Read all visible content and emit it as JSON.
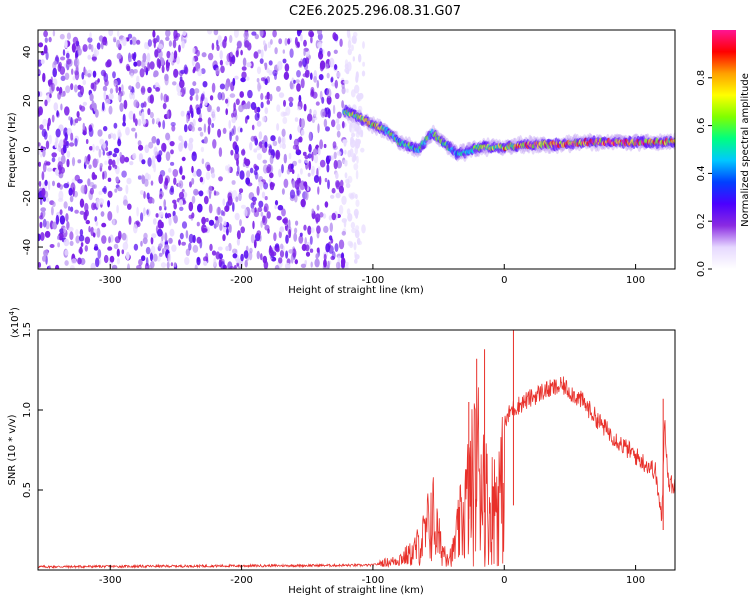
{
  "title": "C2E6.2025.296.08.31.G07",
  "chart_data": [
    {
      "type": "heatmap",
      "name": "spectrogram",
      "xlabel": "Height of straight line (km)",
      "ylabel": "Frequency (Hz)",
      "xlim": [
        -355,
        130
      ],
      "ylim": [
        -49,
        49
      ],
      "xticks": [
        -300,
        -200,
        -100,
        0,
        100
      ],
      "yticks": [
        -40,
        -20,
        0,
        20,
        40
      ],
      "colorbar": {
        "label": "Normalized spectral amplitude",
        "range": [
          0.0,
          1.0
        ],
        "ticks": [
          0.0,
          0.2,
          0.4,
          0.6,
          0.8
        ],
        "tick_labels": [
          "0.0",
          "0.2",
          "0.4",
          "0.6",
          "0.8"
        ],
        "colors": [
          "#ffffff",
          "#e6d8ff",
          "#8a2be2",
          "#4b00ff",
          "#0040ff",
          "#00c8ff",
          "#00ff80",
          "#80ff00",
          "#ffff00",
          "#ffa000",
          "#ff0000",
          "#ff1493"
        ]
      },
      "noise_region_km": [
        -355,
        -122
      ],
      "noise_amplitude": 0.25,
      "signal_ridge": [
        {
          "x": -122,
          "freq": 16,
          "amp": 0.55
        },
        {
          "x": -110,
          "freq": 13,
          "amp": 0.65
        },
        {
          "x": -100,
          "freq": 10,
          "amp": 0.75
        },
        {
          "x": -90,
          "freq": 8,
          "amp": 0.6
        },
        {
          "x": -80,
          "freq": 3,
          "amp": 0.55
        },
        {
          "x": -65,
          "freq": 0,
          "amp": 0.5
        },
        {
          "x": -55,
          "freq": 7,
          "amp": 0.6
        },
        {
          "x": -45,
          "freq": 2,
          "amp": 0.55
        },
        {
          "x": -35,
          "freq": -2,
          "amp": 0.45
        },
        {
          "x": -25,
          "freq": 0,
          "amp": 0.55
        },
        {
          "x": -15,
          "freq": 1,
          "amp": 0.65
        },
        {
          "x": 0,
          "freq": 1,
          "amp": 0.75
        },
        {
          "x": 20,
          "freq": 2,
          "amp": 0.85
        },
        {
          "x": 40,
          "freq": 2,
          "amp": 0.85
        },
        {
          "x": 60,
          "freq": 3,
          "amp": 0.85
        },
        {
          "x": 80,
          "freq": 3,
          "amp": 0.9
        },
        {
          "x": 100,
          "freq": 3,
          "amp": 0.9
        },
        {
          "x": 115,
          "freq": 3,
          "amp": 0.85
        },
        {
          "x": 130,
          "freq": 3,
          "amp": 0.8
        }
      ]
    },
    {
      "type": "line",
      "name": "snr",
      "xlabel": "Height of straight line (km)",
      "ylabel": "SNR (10 * v/v)",
      "y_multiplier_label": "(x10",
      "y_multiplier_exp": "4",
      "xlim": [
        -355,
        130
      ],
      "ylim": [
        0,
        1.5
      ],
      "xticks": [
        -300,
        -200,
        -100,
        0,
        100
      ],
      "yticks": [
        0.5,
        1.0,
        1.5
      ],
      "ytick_labels": [
        "0.5",
        "1.0",
        "1.5"
      ],
      "color": "#e8302a",
      "envelope": [
        {
          "x": -355,
          "y": 0.02
        },
        {
          "x": -100,
          "y": 0.03
        },
        {
          "x": -85,
          "y": 0.06
        },
        {
          "x": -70,
          "y": 0.15
        },
        {
          "x": -60,
          "y": 0.35
        },
        {
          "x": -55,
          "y": 0.6
        },
        {
          "x": -48,
          "y": 0.2
        },
        {
          "x": -40,
          "y": 0.12
        },
        {
          "x": -32,
          "y": 0.55
        },
        {
          "x": -25,
          "y": 0.9
        },
        {
          "x": -18,
          "y": 1.2
        },
        {
          "x": -12,
          "y": 0.6
        },
        {
          "x": -5,
          "y": 0.8
        },
        {
          "x": 5,
          "y": 1.0
        },
        {
          "x": 15,
          "y": 1.05
        },
        {
          "x": 30,
          "y": 1.12
        },
        {
          "x": 45,
          "y": 1.15
        },
        {
          "x": 60,
          "y": 1.05
        },
        {
          "x": 75,
          "y": 0.9
        },
        {
          "x": 90,
          "y": 0.78
        },
        {
          "x": 105,
          "y": 0.68
        },
        {
          "x": 115,
          "y": 0.62
        },
        {
          "x": 120,
          "y": 0.3
        },
        {
          "x": 122,
          "y": 0.95
        },
        {
          "x": 125,
          "y": 0.55
        },
        {
          "x": 130,
          "y": 0.52
        }
      ],
      "spikes": [
        {
          "x": 7,
          "y": 1.52
        },
        {
          "x": -15,
          "y": 1.38
        },
        {
          "x": -21,
          "y": 1.32
        },
        {
          "x": -27,
          "y": 1.05
        },
        {
          "x": 121,
          "y": 1.07
        }
      ]
    }
  ]
}
